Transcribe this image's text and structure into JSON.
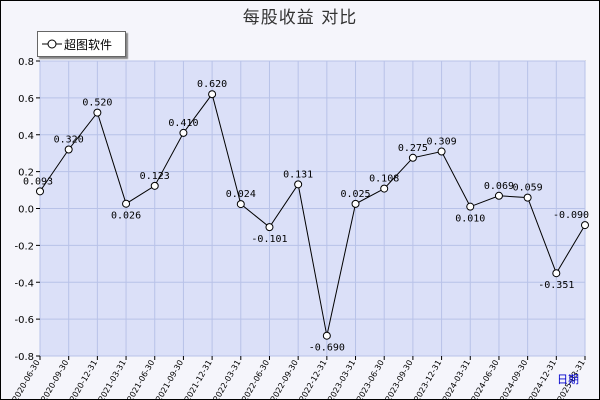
{
  "chart_data": {
    "type": "line",
    "title": "每股收益  对比",
    "xlabel": "日期",
    "ylim": [
      -0.8,
      0.8
    ],
    "yticks": [
      "0.8",
      "0.6",
      "0.4",
      "0.2",
      "0.0",
      "-0.2",
      "-0.4",
      "-0.6",
      "-0.8"
    ],
    "grid": true,
    "legend_position": "top-left",
    "categories": [
      "2020-06-30",
      "2020-09-30",
      "2020-12-31",
      "2021-03-31",
      "2021-06-30",
      "2021-09-30",
      "2021-12-31",
      "2022-03-31",
      "2022-06-30",
      "2022-09-30",
      "2022-12-31",
      "2023-03-31",
      "2023-06-30",
      "2023-09-30",
      "2023-12-31",
      "2024-03-31",
      "2024-06-30",
      "2024-09-30",
      "2024-12-31",
      "2025-03-31"
    ],
    "series": [
      {
        "name": "超图软件",
        "values": [
          0.093,
          0.32,
          0.52,
          0.026,
          0.123,
          0.41,
          0.62,
          0.024,
          -0.101,
          0.131,
          -0.69,
          0.025,
          0.108,
          0.275,
          0.309,
          0.01,
          0.069,
          0.059,
          -0.351,
          -0.09
        ],
        "labels": [
          "0.093",
          "0.320",
          "0.520",
          "0.026",
          "0.123",
          "0.410",
          "0.620",
          "0.024",
          "-0.101",
          "0.131",
          "-0.690",
          "0.025",
          "0.108",
          "0.275",
          "0.309",
          "0.010",
          "0.069",
          "0.059",
          "-0.351",
          "-0.090"
        ]
      }
    ],
    "colors": {
      "plot_bg": "#dbe0f8",
      "grid": "#b8c2e8",
      "line": "#000000",
      "xlabel": "#0000cc"
    }
  }
}
